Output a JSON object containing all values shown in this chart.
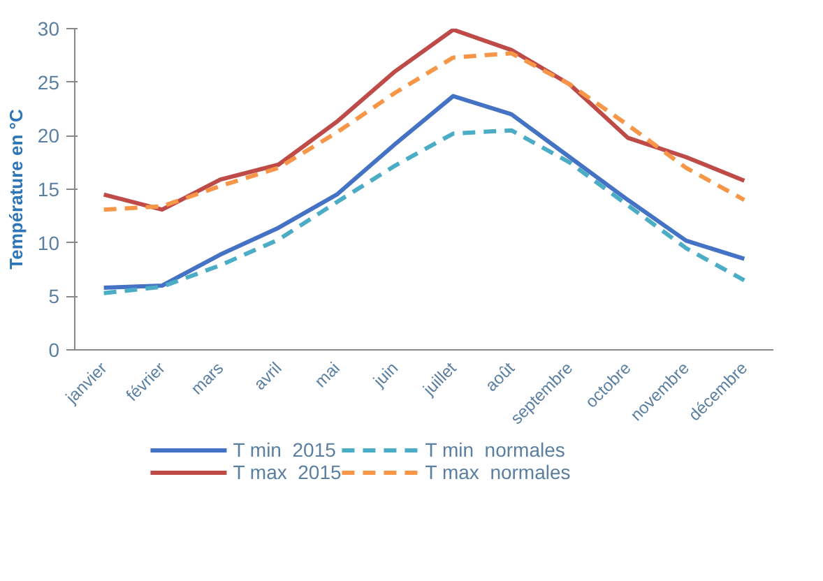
{
  "chart_data": {
    "type": "line",
    "ylabel": "Température en °C",
    "categories": [
      "janvier",
      "février",
      "mars",
      "avril",
      "mai",
      "juin",
      "juillet",
      "août",
      "septembre",
      "octobre",
      "novembre",
      "décembre"
    ],
    "series": [
      {
        "name": "T min  2015",
        "color": "#4472c4",
        "line_style": "solid",
        "values": [
          5.8,
          6.0,
          8.9,
          11.4,
          14.5,
          19.2,
          23.7,
          22.0,
          18.0,
          14.0,
          10.2,
          8.5
        ]
      },
      {
        "name": "T max  2015",
        "color": "#be4b48",
        "line_style": "solid",
        "values": [
          14.5,
          13.1,
          15.9,
          17.3,
          21.3,
          26.0,
          29.9,
          28.0,
          24.8,
          19.8,
          18.0,
          15.8
        ]
      },
      {
        "name": "T min  normales",
        "color": "#4bacc6",
        "line_style": "dashed",
        "values": [
          5.3,
          5.9,
          7.9,
          10.3,
          13.8,
          17.2,
          20.2,
          20.5,
          17.5,
          13.5,
          9.5,
          6.5
        ]
      },
      {
        "name": "T max  normales",
        "color": "#f79646",
        "line_style": "dashed",
        "values": [
          13.1,
          13.4,
          15.3,
          17.0,
          20.3,
          24.0,
          27.3,
          27.7,
          24.8,
          21.0,
          17.0,
          14.0
        ]
      }
    ],
    "ylim": [
      0,
      30
    ],
    "yticks": [
      0,
      5,
      10,
      15,
      20,
      25,
      30
    ],
    "grid": false,
    "legend": "bottom",
    "marker": "none"
  }
}
